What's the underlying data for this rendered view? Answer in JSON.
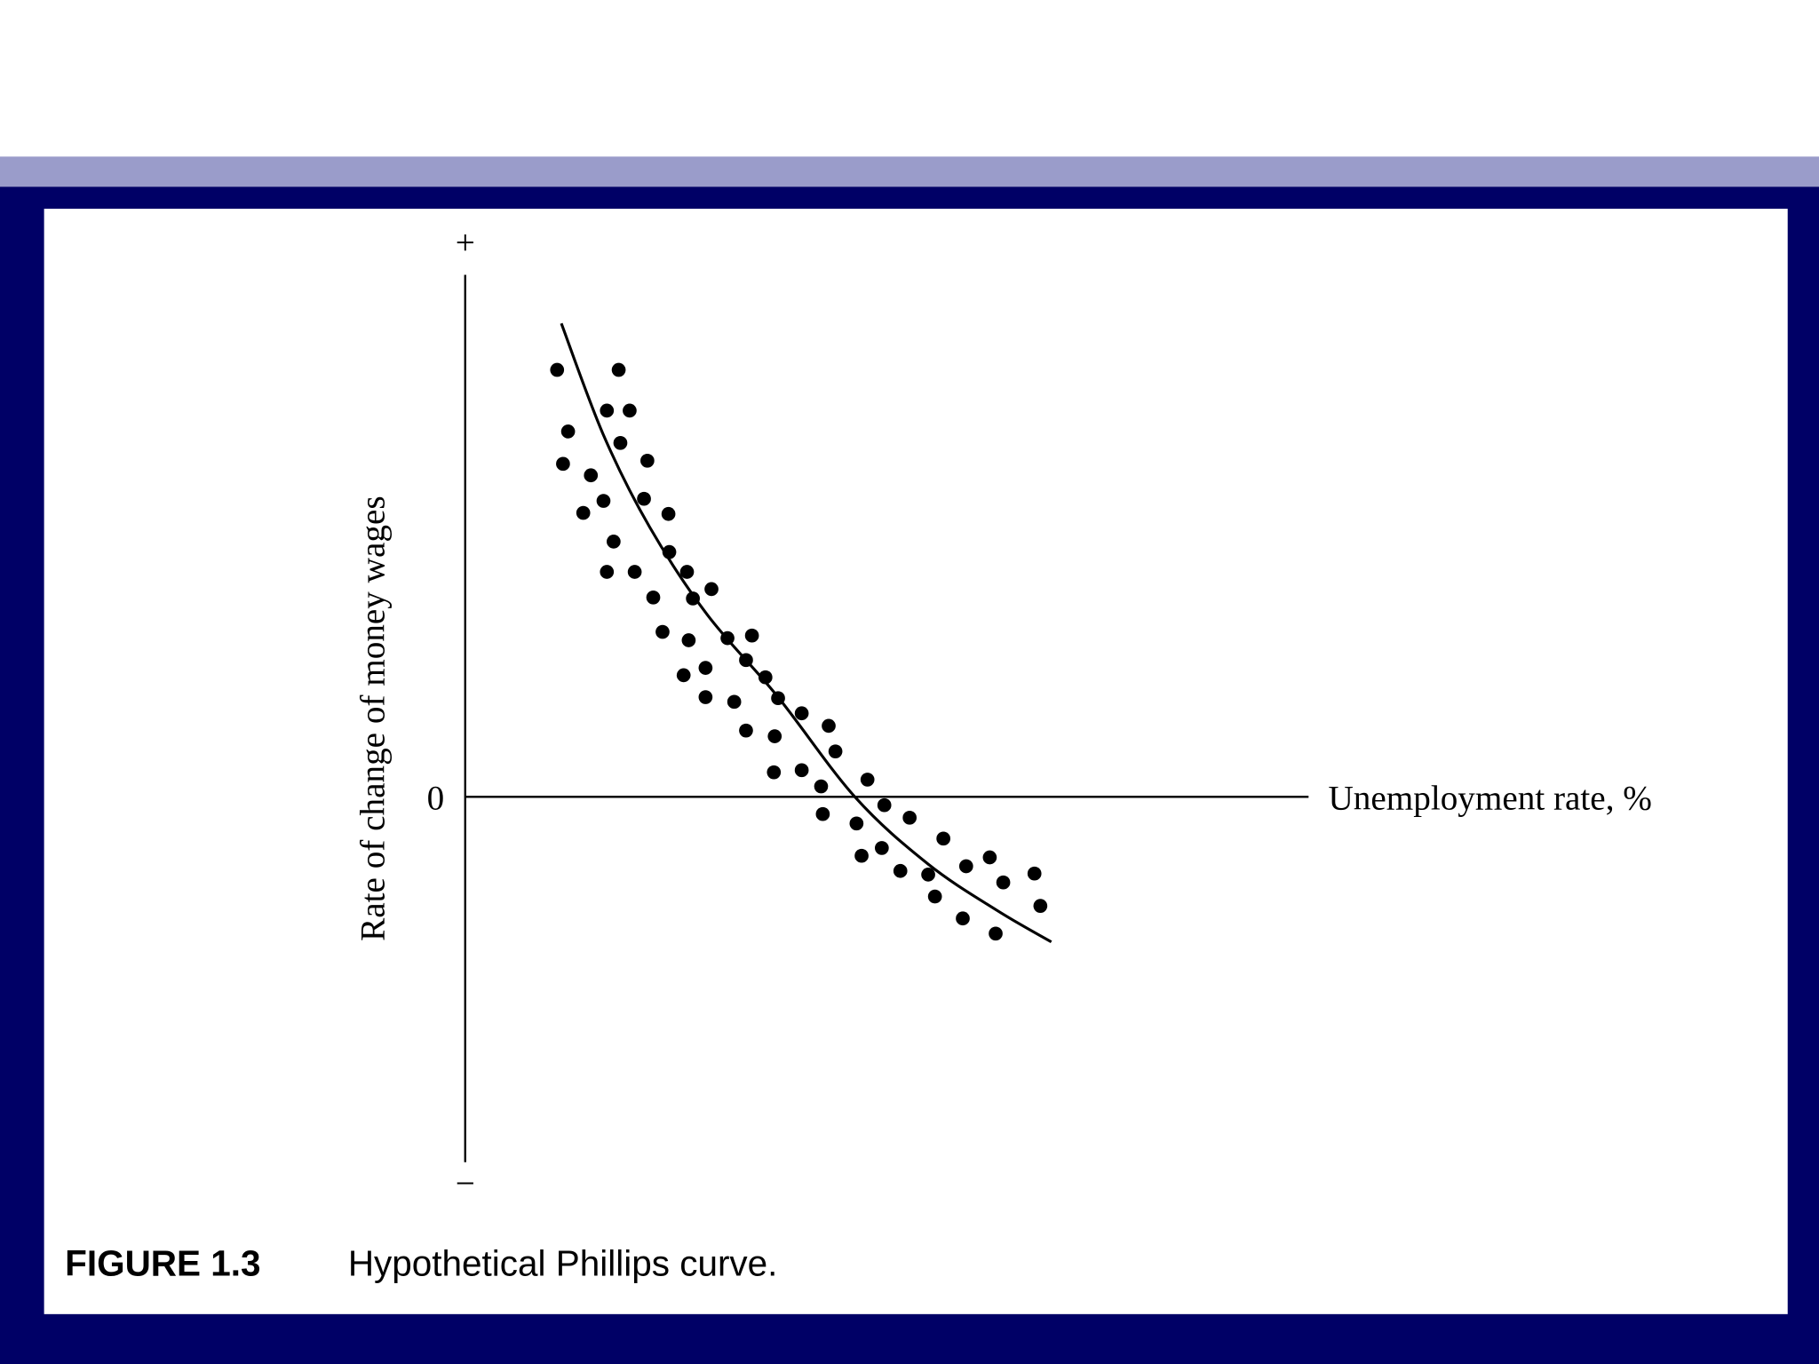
{
  "chart_data": {
    "type": "scatter",
    "x_label": "Unemployment rate, %",
    "y_label": "Rate of change of money wages",
    "xlim": [
      0,
      10
    ],
    "ylim": [
      -7,
      10
    ],
    "yticks": [
      {
        "value": 10,
        "label": "+"
      },
      0,
      {
        "value": -7,
        "label": "−"
      }
    ],
    "color": "#000000",
    "x": [
      1.09,
      1.82,
      1.22,
      1.68,
      1.95,
      1.16,
      1.84,
      1.49,
      2.16,
      1.4,
      1.64,
      2.12,
      2.41,
      1.76,
      1.68,
      2.01,
      2.42,
      2.63,
      2.92,
      2.7,
      2.23,
      2.34,
      2.65,
      3.11,
      3.4,
      2.59,
      2.85,
      3.33,
      3.56,
      2.85,
      3.19,
      3.71,
      3.99,
      3.33,
      3.67,
      4.31,
      4.39,
      3.66,
      3.99,
      4.22,
      4.77,
      4.24,
      4.64,
      4.97,
      5.27,
      4.7,
      4.94,
      5.16,
      5.67,
      5.49,
      5.94,
      6.22,
      5.57,
      6.38,
      6.75,
      5.9,
      6.29,
      6.82
    ],
    "y": [
      8.18,
      8.18,
      7.0,
      7.4,
      7.4,
      6.38,
      6.78,
      6.16,
      6.44,
      5.44,
      5.67,
      5.71,
      5.42,
      4.89,
      4.31,
      4.31,
      4.69,
      4.31,
      3.98,
      3.8,
      3.82,
      3.16,
      3.0,
      3.04,
      3.09,
      2.33,
      2.47,
      2.62,
      2.29,
      1.91,
      1.82,
      1.89,
      1.6,
      1.27,
      1.16,
      1.36,
      0.87,
      0.47,
      0.51,
      0.2,
      0.33,
      -0.33,
      -0.51,
      -0.16,
      -0.4,
      -1.13,
      -0.98,
      -1.42,
      -0.8,
      -1.49,
      -1.33,
      -1.16,
      -1.91,
      -1.64,
      -1.47,
      -2.33,
      -2.62,
      -2.09
    ],
    "curve": {
      "x": [
        1.14,
        1.64,
        2.19,
        2.87,
        3.7,
        4.62,
        5.49,
        6.31,
        6.95
      ],
      "y": [
        9.07,
        6.93,
        5.16,
        3.49,
        1.93,
        0,
        -1.29,
        -2.18,
        -2.78
      ]
    }
  },
  "caption": {
    "figure": "FIGURE 1.3",
    "text": "Hypothetical Phillips curve."
  }
}
